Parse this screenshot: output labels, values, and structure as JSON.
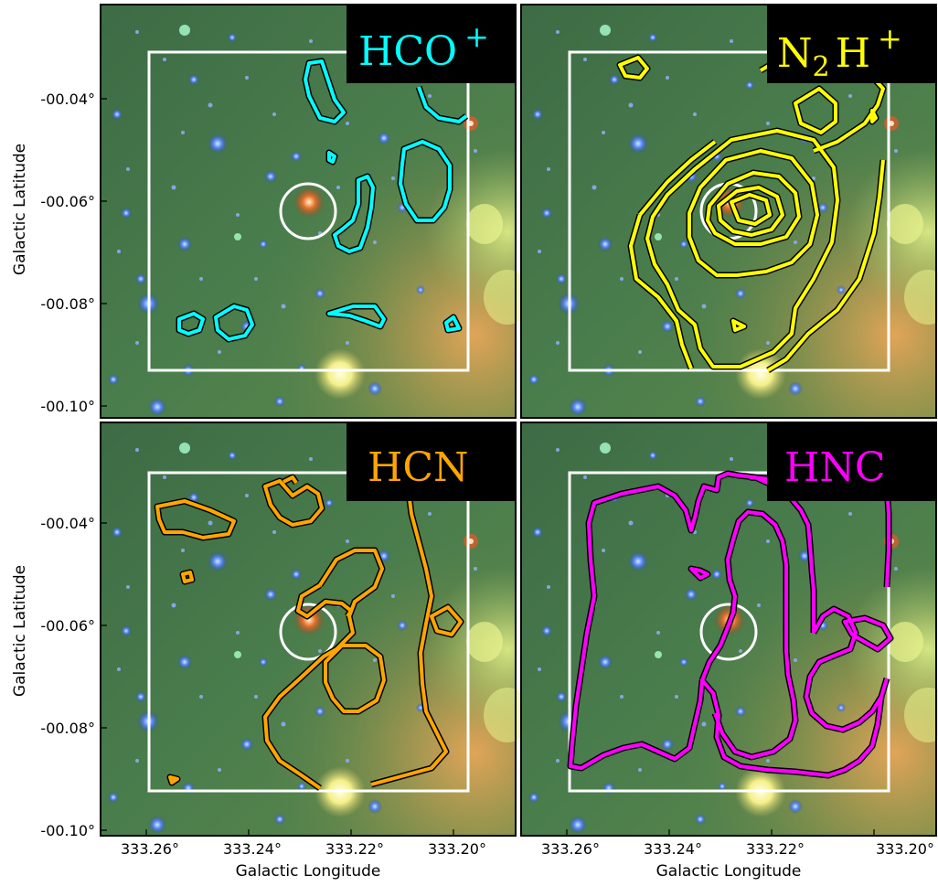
{
  "panels": [
    {
      "id": "hco",
      "label": "HCO",
      "label_sup": "+",
      "color": "#00ffff"
    },
    {
      "id": "n2h",
      "label": "N",
      "label_sub": "2",
      "label_mid": "H",
      "label_sup": "+",
      "color": "#ffff00"
    },
    {
      "id": "hcn",
      "label": "HCN",
      "color": "#ffa500"
    },
    {
      "id": "hnc",
      "label": "HNC",
      "color": "#ff00ff"
    }
  ],
  "axes": {
    "ylabel": "Galactic Latitude",
    "xlabel": "Galactic Longitude",
    "yticks": [
      "-00.04°",
      "-00.06°",
      "-00.08°",
      "-00.10°"
    ],
    "xticks": [
      "333.26°",
      "333.24°",
      "333.22°",
      "333.20°"
    ]
  },
  "colors": {
    "box": "#ffffff",
    "marker_circle": "#ffffff",
    "label_bg": "#000000"
  }
}
